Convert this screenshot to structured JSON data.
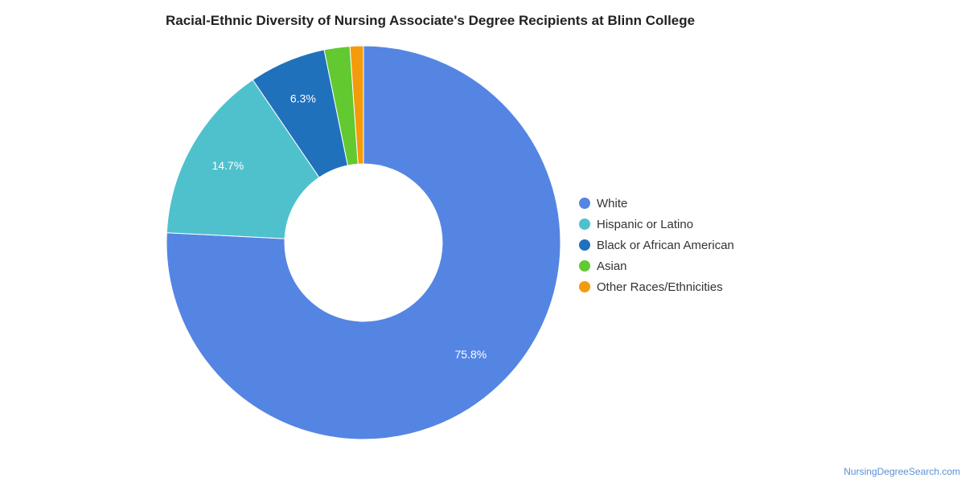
{
  "chart_data": {
    "type": "pie",
    "donut": true,
    "title": "Racial-Ethnic Diversity of Nursing Associate's Degree Recipients at Blinn College",
    "categories": [
      "White",
      "Hispanic or Latino",
      "Black or African American",
      "Asian",
      "Other Races/Ethnicities"
    ],
    "values": [
      75.8,
      14.7,
      6.3,
      2.1,
      1.1
    ],
    "data_labels": [
      "75.8%",
      "14.7%",
      "6.3%",
      "",
      ""
    ],
    "colors": [
      "#5585e3",
      "#4fc1cd",
      "#2071bb",
      "#62c930",
      "#f49b0b"
    ],
    "legend_position": "right"
  },
  "credit": "NursingDegreeSearch.com"
}
